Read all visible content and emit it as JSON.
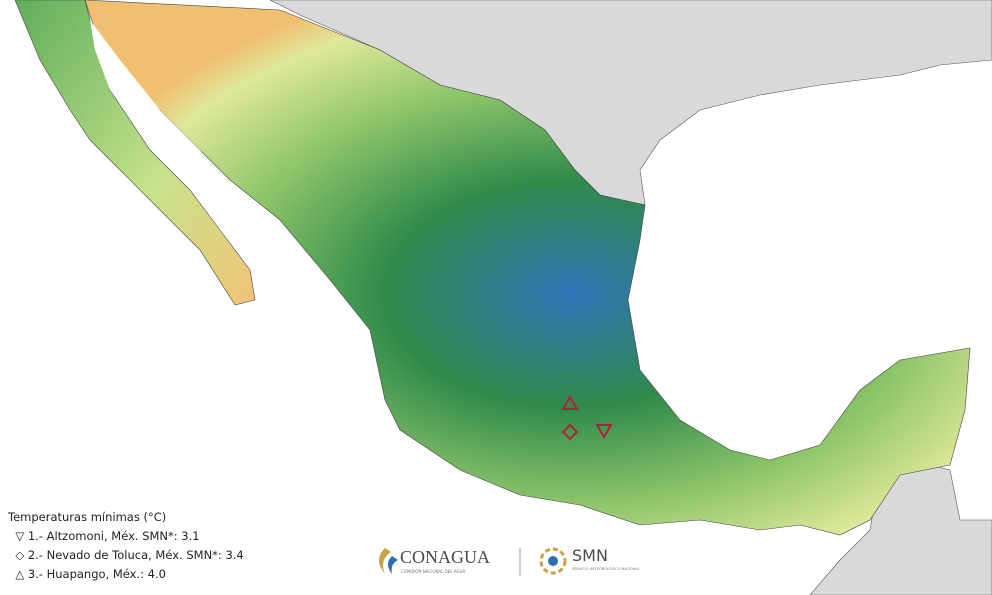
{
  "legend": {
    "title": "Temperaturas mínimas (°C)",
    "entries": [
      {
        "symbol": "▽",
        "text": "1.- Altzomoni, Méx. SMN*: 3.1"
      },
      {
        "symbol": "◇",
        "text": "2.- Nevado de Toluca, Méx. SMN*: 3.4"
      },
      {
        "symbol": "△",
        "text": "3.- Huapango, Méx.: 4.0"
      }
    ]
  },
  "logos": {
    "conagua": "CONAGUA",
    "conagua_sub": "COMISIÓN NACIONAL DEL AGUA",
    "smn": "SMN",
    "smn_sub": "SERVICIO METEOROLÓGICO NACIONAL"
  }
}
